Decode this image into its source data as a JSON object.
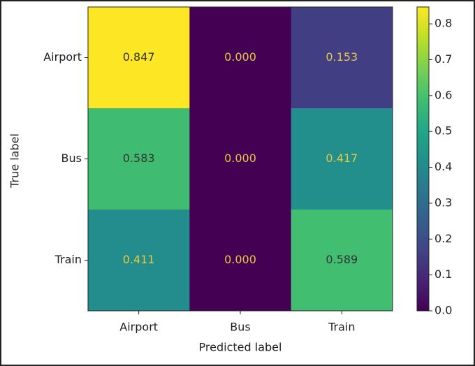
{
  "chart_data": {
    "type": "heatmap",
    "x_label": "Predicted label",
    "y_label": "True label",
    "x_categories": [
      "Airport",
      "Bus",
      "Train"
    ],
    "y_categories": [
      "Airport",
      "Bus",
      "Train"
    ],
    "values": [
      [
        0.847,
        0,
        0.153
      ],
      [
        0.583,
        0,
        0.417
      ],
      [
        0.411,
        0,
        0.589
      ]
    ],
    "value_labels": [
      [
        "0.847",
        "0.000",
        "0.153"
      ],
      [
        "0.583",
        "0.000",
        "0.417"
      ],
      [
        "0.411",
        "0.000",
        "0.589"
      ]
    ],
    "colormap": "viridis",
    "clim": [
      0,
      0.847
    ],
    "cticks": [
      {
        "value": 0,
        "label": "0.0"
      },
      0.1,
      0.2,
      0.3,
      0.4,
      0.5,
      0.6,
      0.7,
      0.8
    ]
  }
}
